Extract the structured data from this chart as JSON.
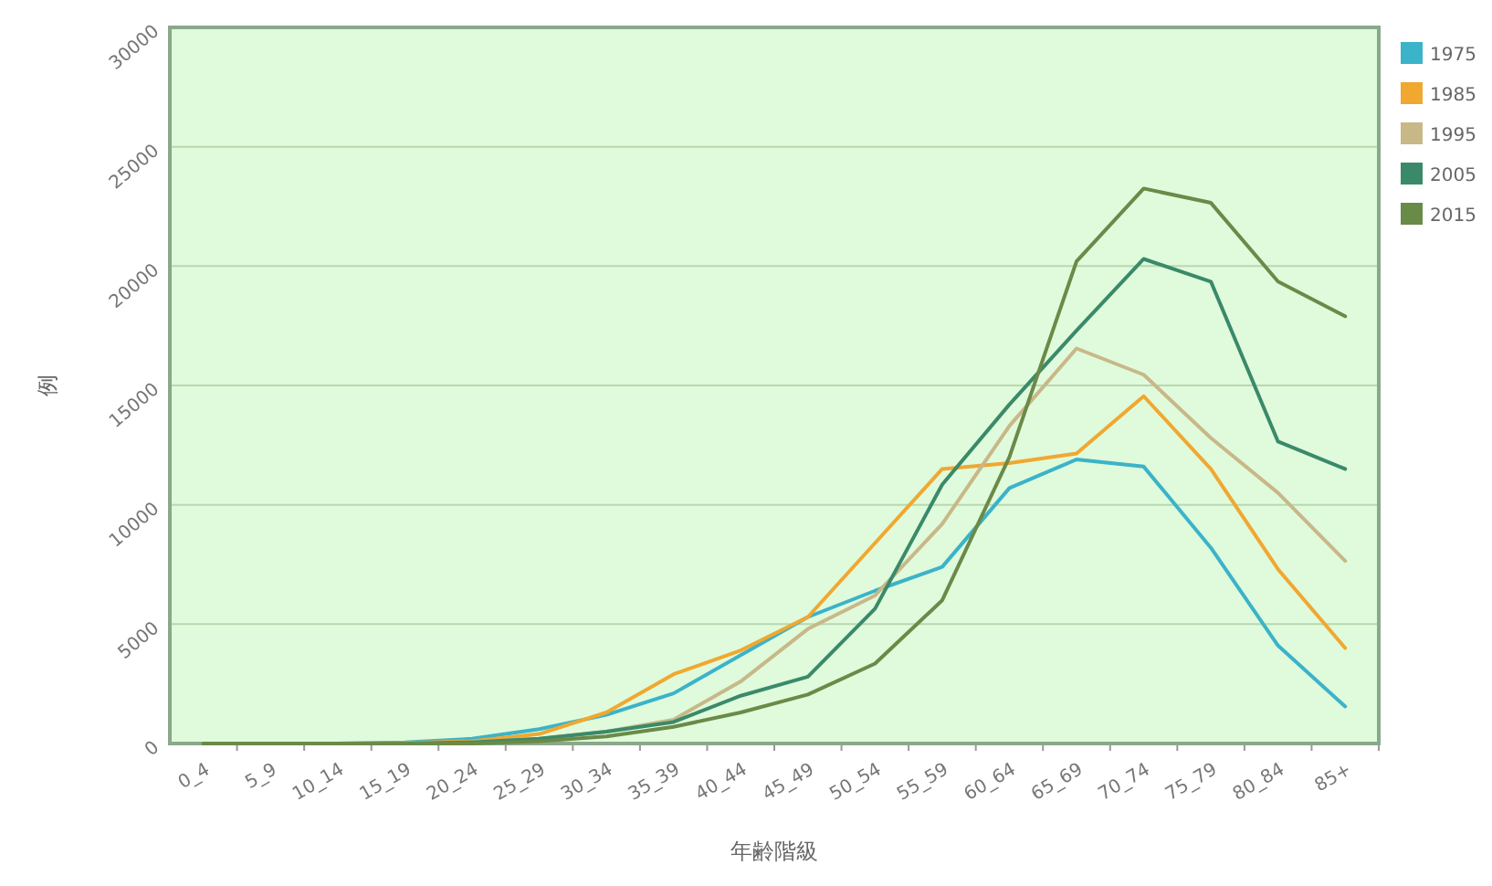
{
  "chart_data": {
    "type": "line",
    "xlabel": "年齢階級",
    "ylabel": "例",
    "categories": [
      "0_4",
      "5_9",
      "10_14",
      "15_19",
      "20_24",
      "25_29",
      "30_34",
      "35_39",
      "40_44",
      "45_49",
      "50_54",
      "55_59",
      "60_64",
      "65_69",
      "70_74",
      "75_79",
      "80_84",
      "85+"
    ],
    "series": [
      {
        "name": "1975",
        "color": "#3bb3c8",
        "values": [
          null,
          null,
          0,
          50,
          200,
          600,
          1200,
          2100,
          3700,
          5300,
          6400,
          7400,
          10700,
          11900,
          11600,
          8200,
          4100,
          1550
        ]
      },
      {
        "name": "1985",
        "color": "#f0a830",
        "values": [
          null,
          null,
          0,
          20,
          100,
          400,
          1300,
          2900,
          3900,
          5300,
          8400,
          11500,
          11750,
          12150,
          14550,
          11500,
          7300,
          4000
        ]
      },
      {
        "name": "1995",
        "color": "#c8b888",
        "values": [
          0,
          0,
          0,
          0,
          50,
          200,
          500,
          1000,
          2600,
          4800,
          6200,
          9200,
          13300,
          16550,
          15450,
          12800,
          10500,
          7650
        ]
      },
      {
        "name": "2005",
        "color": "#3a8a6a",
        "values": [
          0,
          0,
          0,
          0,
          50,
          200,
          500,
          900,
          2000,
          2800,
          5650,
          10850,
          14200,
          17300,
          20300,
          19350,
          12650,
          11500
        ]
      },
      {
        "name": "2015",
        "color": "#6a8a48",
        "values": [
          0,
          0,
          0,
          0,
          0,
          100,
          300,
          700,
          1300,
          2050,
          3350,
          6000,
          12000,
          20200,
          23250,
          22650,
          19350,
          17900
        ]
      }
    ],
    "ylim": [
      0,
      30000
    ],
    "yticks": [
      0,
      5000,
      10000,
      15000,
      20000,
      25000,
      30000
    ],
    "grid": "y",
    "legend": "top right",
    "marker": "none",
    "line_style": "solid"
  }
}
